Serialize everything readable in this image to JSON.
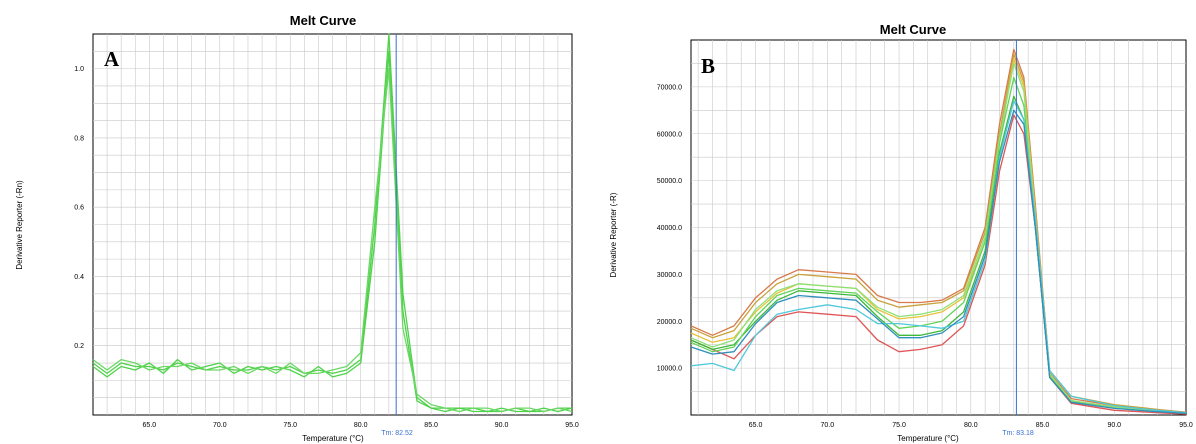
{
  "chart_data": [
    {
      "type": "line",
      "title": "Melt Curve",
      "panel_label": "A",
      "xlabel": "Temperature (°C)",
      "ylabel": "Derivative Reporter (-Rn)",
      "xlim": [
        61,
        95
      ],
      "ylim": [
        0,
        1.1
      ],
      "x_ticks": [
        "65.0",
        "70.0",
        "75.0",
        "80.0",
        "85.0",
        "90.0",
        "95.0"
      ],
      "y_ticks": [
        "0.2",
        "0.4",
        "0.6",
        "0.8",
        "1.0"
      ],
      "grid": true,
      "tm_value": 82.52,
      "tm_label": "Tm: 82.52",
      "series": [
        {
          "color": "#4fd24a",
          "x": [
            61,
            62,
            63,
            64,
            65,
            66,
            67,
            68,
            69,
            70,
            71,
            72,
            73,
            74,
            75,
            76,
            77,
            78,
            79,
            80,
            81,
            82,
            83,
            84,
            85,
            86,
            87,
            88,
            89,
            90,
            91,
            92,
            93,
            94,
            95
          ],
          "values": [
            0.15,
            0.12,
            0.15,
            0.14,
            0.14,
            0.13,
            0.15,
            0.14,
            0.13,
            0.14,
            0.13,
            0.13,
            0.14,
            0.13,
            0.14,
            0.12,
            0.13,
            0.12,
            0.13,
            0.16,
            0.55,
            1.1,
            0.35,
            0.05,
            0.02,
            0.02,
            0.02,
            0.01,
            0.01,
            0.01,
            0.02,
            0.01,
            0.01,
            0.02,
            0.02
          ]
        },
        {
          "color": "#4fd24a",
          "x": [
            61,
            62,
            63,
            64,
            65,
            66,
            67,
            68,
            69,
            70,
            71,
            72,
            73,
            74,
            75,
            76,
            77,
            78,
            79,
            80,
            81,
            82,
            83,
            84,
            85,
            86,
            87,
            88,
            89,
            90,
            91,
            92,
            93,
            94,
            95
          ],
          "values": [
            0.14,
            0.11,
            0.14,
            0.13,
            0.15,
            0.12,
            0.16,
            0.13,
            0.14,
            0.15,
            0.12,
            0.14,
            0.13,
            0.14,
            0.13,
            0.11,
            0.14,
            0.11,
            0.12,
            0.15,
            0.5,
            1.05,
            0.3,
            0.04,
            0.02,
            0.01,
            0.02,
            0.02,
            0.01,
            0.02,
            0.01,
            0.01,
            0.02,
            0.01,
            0.02
          ]
        },
        {
          "color": "#6cd765",
          "x": [
            61,
            62,
            63,
            64,
            65,
            66,
            67,
            68,
            69,
            70,
            71,
            72,
            73,
            74,
            75,
            76,
            77,
            78,
            79,
            80,
            81,
            82,
            83,
            84,
            85,
            86,
            87,
            88,
            89,
            90,
            91,
            92,
            93,
            94,
            95
          ],
          "values": [
            0.16,
            0.13,
            0.16,
            0.15,
            0.13,
            0.14,
            0.14,
            0.15,
            0.13,
            0.13,
            0.14,
            0.12,
            0.14,
            0.12,
            0.15,
            0.12,
            0.12,
            0.13,
            0.14,
            0.18,
            0.6,
            1.0,
            0.25,
            0.06,
            0.03,
            0.02,
            0.01,
            0.02,
            0.02,
            0.01,
            0.02,
            0.02,
            0.01,
            0.02,
            0.01
          ]
        }
      ]
    },
    {
      "type": "line",
      "title": "Melt Curve",
      "panel_label": "B",
      "xlabel": "Temperature (°C)",
      "ylabel": "Derivative Reporter (-R)",
      "xlim": [
        60.5,
        95
      ],
      "ylim": [
        0,
        80000
      ],
      "x_ticks": [
        "65.0",
        "70.0",
        "75.0",
        "80.0",
        "85.0",
        "90.0",
        "95.0"
      ],
      "y_ticks": [
        "10000.0",
        "20000.0",
        "30000.0",
        "40000.0",
        "50000.0",
        "60000.0",
        "70000.0"
      ],
      "grid": true,
      "tm_value": 83.18,
      "tm_label": "Tm: 83.18",
      "series": [
        {
          "color": "#e05555",
          "x": [
            60.5,
            62,
            63.5,
            65,
            66.5,
            68,
            70,
            72,
            73.5,
            75,
            76.5,
            78,
            79.5,
            81,
            82,
            83,
            83.7,
            84.5,
            85.5,
            87,
            90,
            93,
            95
          ],
          "values": [
            16000,
            14000,
            12000,
            17000,
            21000,
            22000,
            21500,
            21000,
            16000,
            13500,
            14000,
            15000,
            19000,
            32000,
            52000,
            64000,
            60000,
            40000,
            8000,
            2500,
            1000,
            500,
            200
          ]
        },
        {
          "color": "#d87a4a",
          "x": [
            60.5,
            62,
            63.5,
            65,
            66.5,
            68,
            70,
            72,
            73.5,
            75,
            76.5,
            78,
            79.5,
            81,
            82,
            83,
            83.7,
            84.5,
            85.5,
            87,
            90,
            93,
            95
          ],
          "values": [
            19000,
            17000,
            19000,
            25000,
            29000,
            31000,
            30500,
            30000,
            25500,
            24000,
            24000,
            24500,
            27000,
            40000,
            62000,
            78000,
            72000,
            45000,
            9000,
            3500,
            2000,
            1000,
            500
          ]
        },
        {
          "color": "#c9a13a",
          "x": [
            60.5,
            62,
            63.5,
            65,
            66.5,
            68,
            70,
            72,
            73.5,
            75,
            76.5,
            78,
            79.5,
            81,
            82,
            83,
            83.7,
            84.5,
            85.5,
            87,
            90,
            93,
            95
          ],
          "values": [
            18500,
            16500,
            18000,
            24000,
            28000,
            30000,
            29500,
            29000,
            24500,
            23000,
            23500,
            24000,
            26500,
            39000,
            60000,
            77000,
            71000,
            44000,
            9500,
            4000,
            2200,
            1200,
            600
          ]
        },
        {
          "color": "#e8c23a",
          "x": [
            60.5,
            62,
            63.5,
            65,
            66.5,
            68,
            70,
            72,
            73.5,
            75,
            76.5,
            78,
            79.5,
            81,
            82,
            83,
            83.7,
            84.5,
            85.5,
            87,
            90,
            93,
            95
          ],
          "values": [
            17500,
            15500,
            16500,
            22000,
            26000,
            28000,
            27500,
            27000,
            22500,
            20500,
            21000,
            22000,
            25000,
            37000,
            58000,
            76000,
            70000,
            43000,
            8500,
            3000,
            1800,
            900,
            400
          ]
        },
        {
          "color": "#3db83a",
          "x": [
            60.5,
            62,
            63.5,
            65,
            66.5,
            68,
            70,
            72,
            73.5,
            75,
            76.5,
            78,
            79.5,
            81,
            82,
            83,
            83.7,
            84.5,
            85.5,
            87,
            90,
            93,
            95
          ],
          "values": [
            16000,
            14000,
            15000,
            20000,
            24500,
            26500,
            26000,
            25500,
            21000,
            17000,
            17000,
            18000,
            22000,
            35000,
            56000,
            68000,
            63000,
            40000,
            8000,
            2800,
            1500,
            800,
            400
          ]
        },
        {
          "color": "#62d45a",
          "x": [
            60.5,
            62,
            63.5,
            65,
            66.5,
            68,
            70,
            72,
            73.5,
            75,
            76.5,
            78,
            79.5,
            81,
            82,
            83,
            83.7,
            84.5,
            85.5,
            87,
            90,
            93,
            95
          ],
          "values": [
            15500,
            13500,
            14500,
            21000,
            25500,
            27000,
            26500,
            26000,
            22000,
            18500,
            19000,
            20000,
            24000,
            37000,
            58000,
            72000,
            66000,
            41000,
            8200,
            2900,
            1600,
            800,
            400
          ]
        },
        {
          "color": "#8ee07a",
          "x": [
            60.5,
            62,
            63.5,
            65,
            66.5,
            68,
            70,
            72,
            73.5,
            75,
            76.5,
            78,
            79.5,
            81,
            82,
            83,
            83.7,
            84.5,
            85.5,
            87,
            90,
            93,
            95
          ],
          "values": [
            16500,
            14500,
            16000,
            22500,
            26500,
            28000,
            27500,
            27000,
            23000,
            21000,
            21500,
            22500,
            25500,
            38000,
            59000,
            75000,
            69000,
            42000,
            8800,
            3100,
            1700,
            900,
            450
          ]
        },
        {
          "color": "#4fc8dc",
          "x": [
            60.5,
            62,
            63.5,
            65,
            66.5,
            68,
            70,
            72,
            73.5,
            75,
            76.5,
            78,
            79.5,
            81,
            82,
            83,
            83.7,
            84.5,
            85.5,
            87,
            90,
            93,
            95
          ],
          "values": [
            10500,
            11000,
            9500,
            17000,
            21500,
            22500,
            23500,
            22500,
            19500,
            19500,
            19000,
            18500,
            20000,
            33000,
            55000,
            67000,
            63000,
            42000,
            9500,
            4000,
            2000,
            1000,
            500
          ]
        },
        {
          "color": "#2f8fbd",
          "x": [
            60.5,
            62,
            63.5,
            65,
            66.5,
            68,
            70,
            72,
            73.5,
            75,
            76.5,
            78,
            79.5,
            81,
            82,
            83,
            83.7,
            84.5,
            85.5,
            87,
            90,
            93,
            95
          ],
          "values": [
            14500,
            13000,
            13500,
            19500,
            24000,
            25500,
            25000,
            24500,
            20500,
            16500,
            16500,
            17500,
            21000,
            34000,
            54000,
            65000,
            62000,
            40000,
            8000,
            2700,
            1400,
            700,
            350
          ]
        }
      ]
    }
  ]
}
